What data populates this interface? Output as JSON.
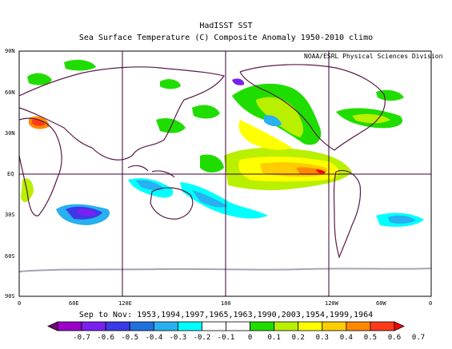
{
  "map": {
    "title": "HadISST SST",
    "subtitle": "Sea Surface Temperature (C) Composite Anomaly 1950-2010 climo",
    "credit": "NOAA/ESRL Physical Sciences Division",
    "lat_labels": [
      "90N",
      "60N",
      "30N",
      "EQ",
      "30S",
      "60S",
      "90S"
    ],
    "lon_labels": [
      "0",
      "60E",
      "120E",
      "180",
      "120W",
      "60W",
      "0"
    ],
    "composite_years": "Sep to Nov: 1953,1994,1997,1965,1963,1990,2003,1954,1999,1964"
  },
  "colorbar": {
    "labels": [
      "-0.7",
      "-0.6",
      "-0.5",
      "-0.4",
      "-0.3",
      "-0.2",
      "-0.1",
      "0",
      "0.1",
      "0.2",
      "0.3",
      "0.4",
      "0.5",
      "0.6",
      "0.7"
    ],
    "colors": [
      "#7a007a",
      "#9a00c8",
      "#7a20f0",
      "#3a3ae6",
      "#2070e0",
      "#28b0f0",
      "#00ffff",
      "#ffffff",
      "#ffffff",
      "#20dd00",
      "#b8f000",
      "#ffff00",
      "#ffcc00",
      "#ff8800",
      "#ff3a1a",
      "#ff0000"
    ]
  }
}
